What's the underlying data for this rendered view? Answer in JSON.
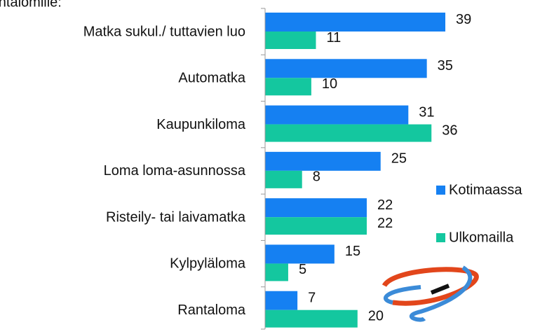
{
  "chart_data": {
    "type": "hbar",
    "title": "rantalomille:",
    "categories": [
      "Matka sukul./ tuttavien luo",
      "Automatka",
      "Kaupunkiloma",
      "Loma loma-asunnossa",
      "Risteily- tai laivamatka",
      "Kylpyläloma",
      "Rantaloma"
    ],
    "series": [
      {
        "name": "Kotimaassa",
        "color": "#1580f2",
        "values": [
          39,
          35,
          31,
          25,
          22,
          15,
          7
        ]
      },
      {
        "name": "Ulkomailla",
        "color": "#14c79f",
        "values": [
          11,
          10,
          36,
          8,
          22,
          5,
          20
        ]
      }
    ],
    "xlim": [
      0,
      60
    ],
    "legend": "right"
  }
}
